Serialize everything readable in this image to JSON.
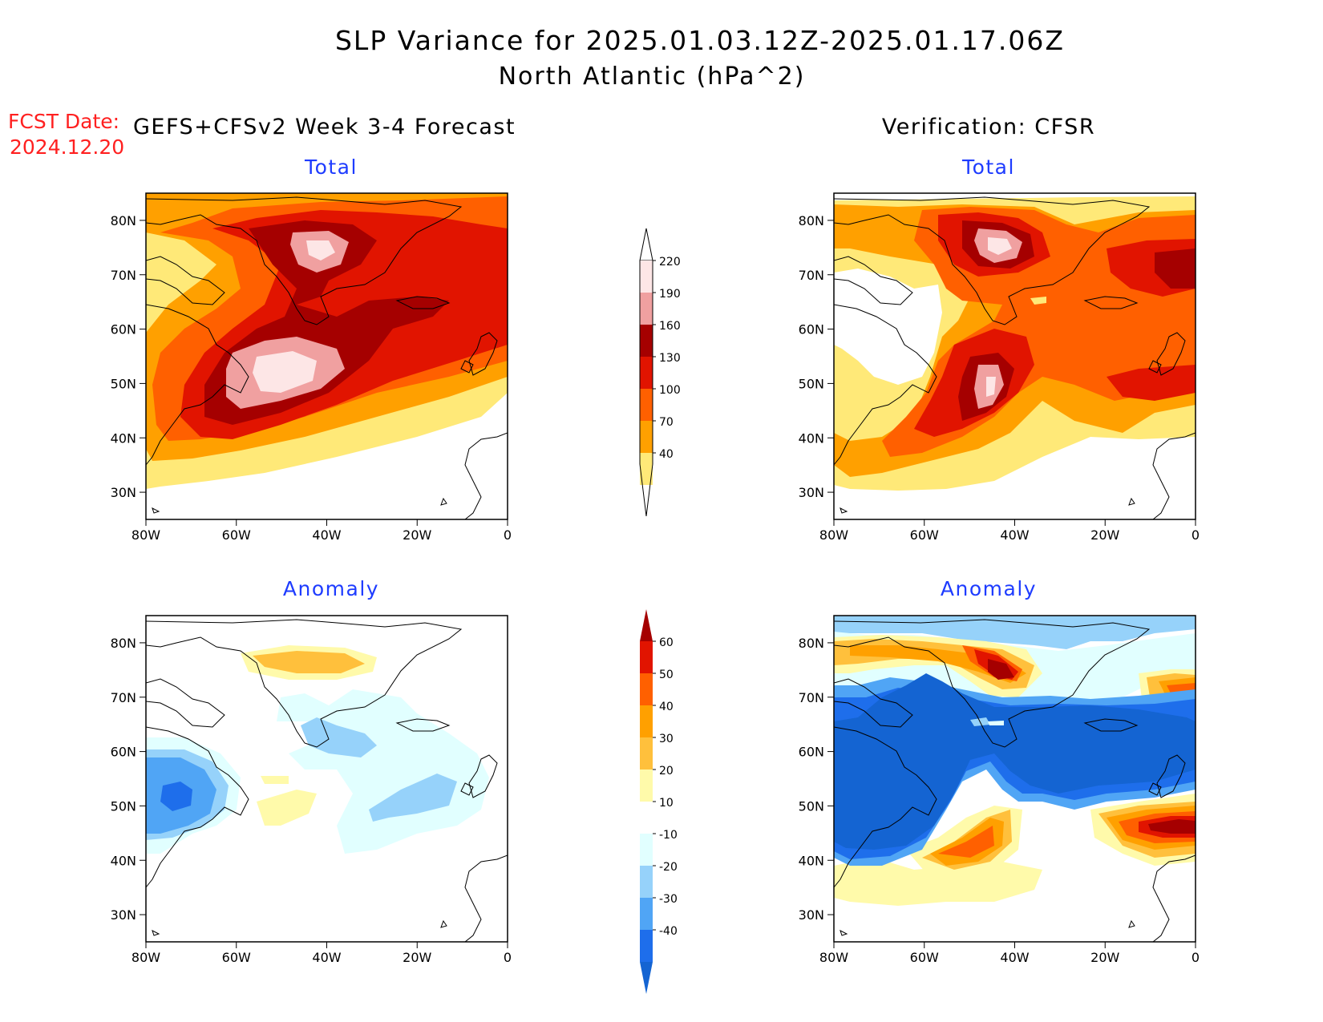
{
  "header": {
    "title_line1": "SLP Variance for 2025.01.03.12Z-2025.01.17.06Z",
    "title_line2": "North Atlantic (hPa^2)",
    "fcst_date_label": "FCST Date:",
    "fcst_date_value": "2024.12.20",
    "left_column_title": "GEFS+CFSv2 Week 3-4 Forecast",
    "right_column_title": "Verification: CFSR"
  },
  "panels": {
    "fcst_total": {
      "title": "Total"
    },
    "obs_total": {
      "title": "Total"
    },
    "fcst_anom": {
      "title": "Anomaly"
    },
    "obs_anom": {
      "title": "Anomaly"
    }
  },
  "axes": {
    "lat_ticks": [
      "80N",
      "70N",
      "60N",
      "50N",
      "40N",
      "30N"
    ],
    "lon_ticks": [
      "80W",
      "60W",
      "40W",
      "20W",
      "0"
    ],
    "lat_values": [
      80,
      70,
      60,
      50,
      40,
      30
    ],
    "lon_values": [
      -80,
      -60,
      -40,
      -20,
      0
    ],
    "lat_range": [
      25,
      85
    ],
    "lon_range": [
      -80,
      0
    ]
  },
  "colorbars": {
    "total": {
      "labels": [
        "220",
        "190",
        "160",
        "130",
        "100",
        "70",
        "40"
      ],
      "levels": [
        40,
        70,
        100,
        130,
        160,
        190,
        220
      ],
      "colors": [
        "#ffe978",
        "#ffa000",
        "#ff6000",
        "#e11400",
        "#a50000",
        "#f0a0a0",
        "#fde6e6"
      ]
    },
    "anomaly": {
      "labels": [
        "60",
        "50",
        "40",
        "30",
        "20",
        "10",
        "-10",
        "-20",
        "-30",
        "-40"
      ],
      "levels": [
        -40,
        -30,
        -20,
        -10,
        10,
        20,
        30,
        40,
        50,
        60
      ],
      "colors": [
        "#1464d2",
        "#1e6eeb",
        "#50a5f5",
        "#96d2fa",
        "#e1ffff",
        "#ffffff",
        "#fffaaa",
        "#ffc03c",
        "#ffa000",
        "#ff6000",
        "#e11400",
        "#a50000"
      ]
    }
  },
  "map_data": {
    "total_colors": [
      "#ffe978",
      "#ffa000",
      "#ff6000",
      "#e11400",
      "#a50000",
      "#f0a0a0",
      "#fde6e6"
    ],
    "anom_pos_colors": [
      "#fffaaa",
      "#ffc03c",
      "#ffa000",
      "#ff6000",
      "#e11400",
      "#a50000"
    ],
    "anom_neg_colors": [
      "#e1ffff",
      "#96d2fa",
      "#50a5f5",
      "#1e6eeb",
      "#1464d2"
    ]
  }
}
